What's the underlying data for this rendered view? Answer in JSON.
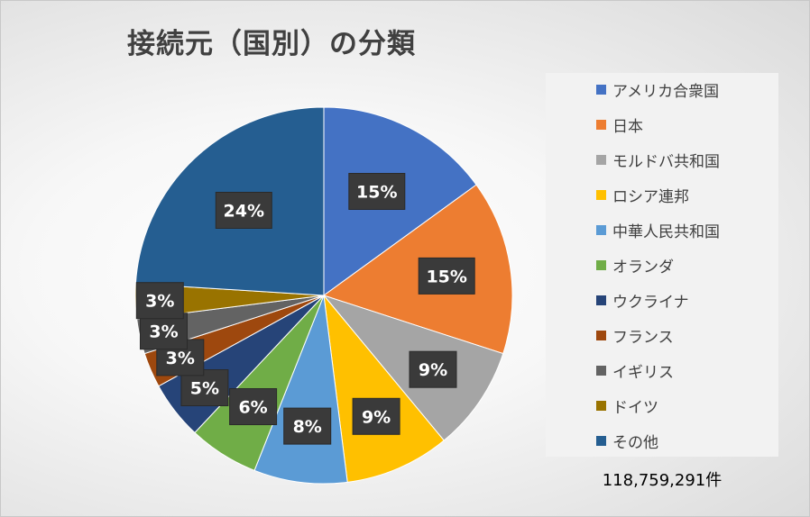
{
  "chart_data": {
    "type": "pie",
    "title": "接続元（国別）の分類",
    "slices": [
      {
        "label": "アメリカ合衆国",
        "value": 15,
        "display": "15%",
        "color": "#4472C4"
      },
      {
        "label": "日本",
        "value": 15,
        "display": "15%",
        "color": "#ED7D31"
      },
      {
        "label": "モルドバ共和国",
        "value": 9,
        "display": "9%",
        "color": "#A5A5A5"
      },
      {
        "label": "ロシア連邦",
        "value": 9,
        "display": "9%",
        "color": "#FFC000"
      },
      {
        "label": "中華人民共和国",
        "value": 8,
        "display": "8%",
        "color": "#5B9BD5"
      },
      {
        "label": "オランダ",
        "value": 6,
        "display": "6%",
        "color": "#70AD47"
      },
      {
        "label": "ウクライナ",
        "value": 5,
        "display": "5%",
        "color": "#264478"
      },
      {
        "label": "フランス",
        "value": 3,
        "display": "3%",
        "color": "#9E480E"
      },
      {
        "label": "イギリス",
        "value": 3,
        "display": "3%",
        "color": "#636363"
      },
      {
        "label": "ドイツ",
        "value": 3,
        "display": "3%",
        "color": "#997300"
      },
      {
        "label": "その他",
        "value": 24,
        "display": "24%",
        "color": "#255E91"
      }
    ],
    "legend_position": "right"
  },
  "footer": {
    "total": "118,759,291件"
  }
}
